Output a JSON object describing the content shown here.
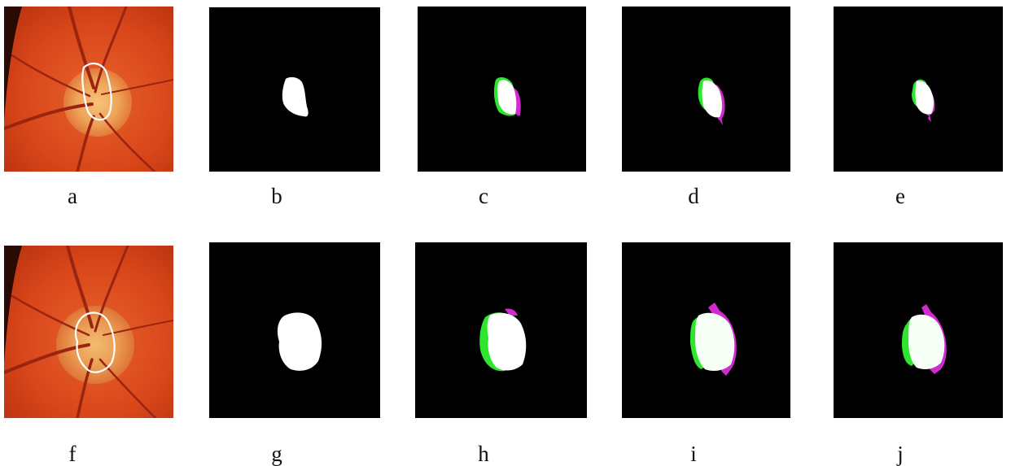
{
  "captions": {
    "a": "a",
    "b": "b",
    "c": "c",
    "d": "d",
    "e": "e",
    "f": "f",
    "g": "g",
    "h": "h",
    "i": "i",
    "j": "j"
  },
  "colors": {
    "background": "#ffffff",
    "mask_background": "#000000",
    "mask_fill": "#ffffff",
    "under_segmentation": "#2ee62e",
    "over_segmentation": "#d12ad1",
    "fundus_base": "#d8461a",
    "optic_disc": "#f0b565",
    "disc_outline": "#ffffff",
    "vessel": "#9a2410"
  }
}
